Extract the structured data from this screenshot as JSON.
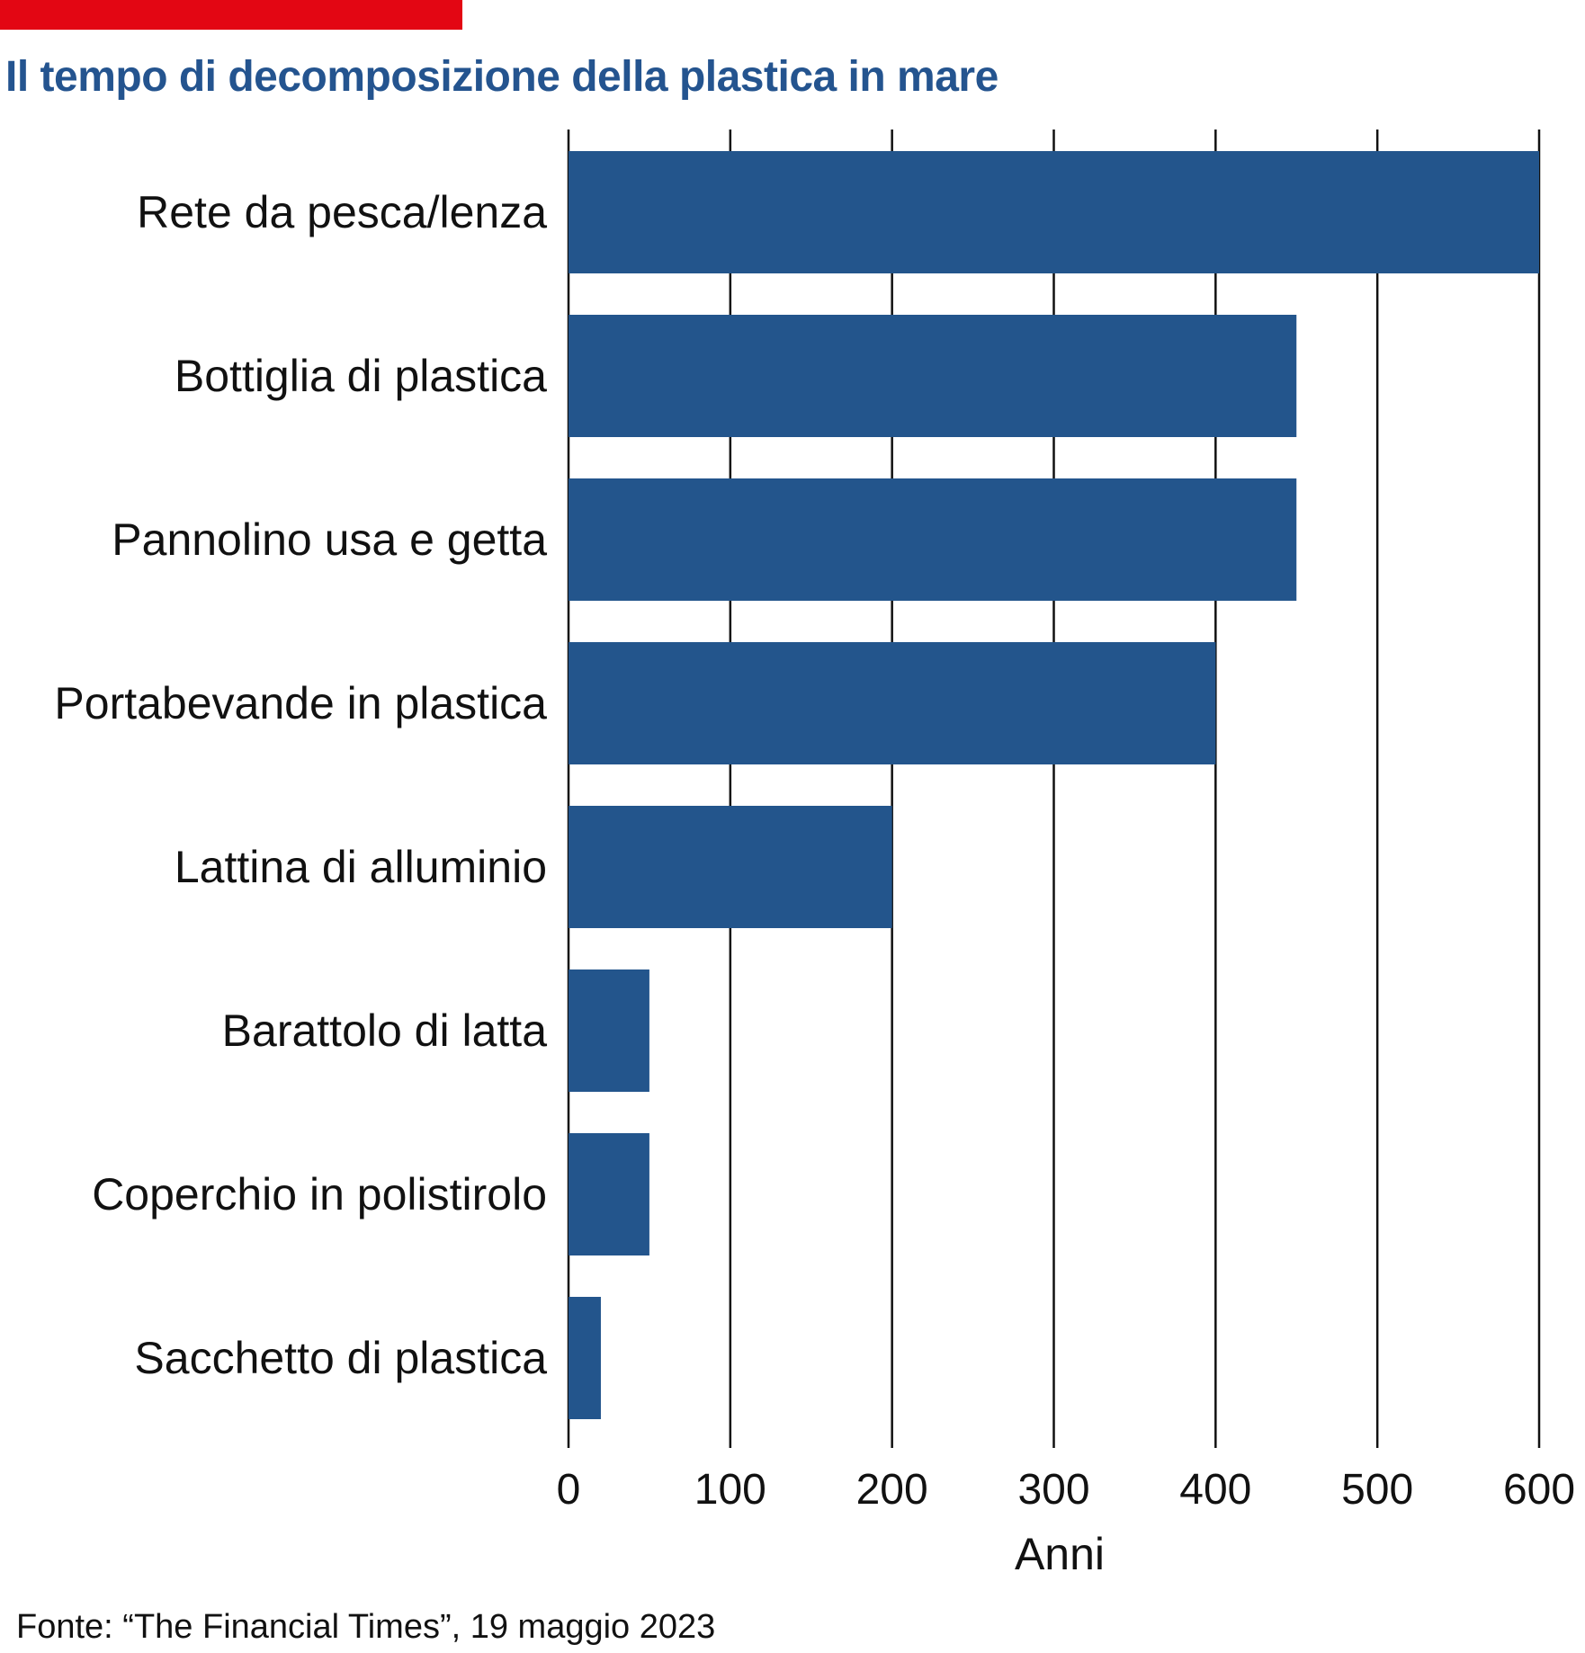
{
  "colors": {
    "accent": "#e30613",
    "bar": "#23558c",
    "title": "#24548f",
    "gridline": "#111111"
  },
  "chart_data": {
    "type": "bar",
    "orientation": "horizontal",
    "title": "Il tempo di decomposizione della plastica in mare",
    "xlabel": "Anni",
    "ylabel": "",
    "xlim": [
      0,
      600
    ],
    "x_ticks": [
      "0",
      "100",
      "200",
      "300",
      "400",
      "500",
      "600"
    ],
    "grid": "vertical",
    "categories": [
      "Rete da pesca/lenza",
      "Bottiglia di plastica",
      "Pannolino usa e getta",
      "Portabevande in plastica",
      "Lattina di alluminio",
      "Barattolo di latta",
      "Coperchio in polistirolo",
      "Sacchetto di plastica"
    ],
    "values": [
      600,
      450,
      450,
      400,
      200,
      50,
      50,
      20
    ]
  },
  "footer": {
    "source": "Fonte: “The Financial Times”, 19 maggio 2023"
  }
}
